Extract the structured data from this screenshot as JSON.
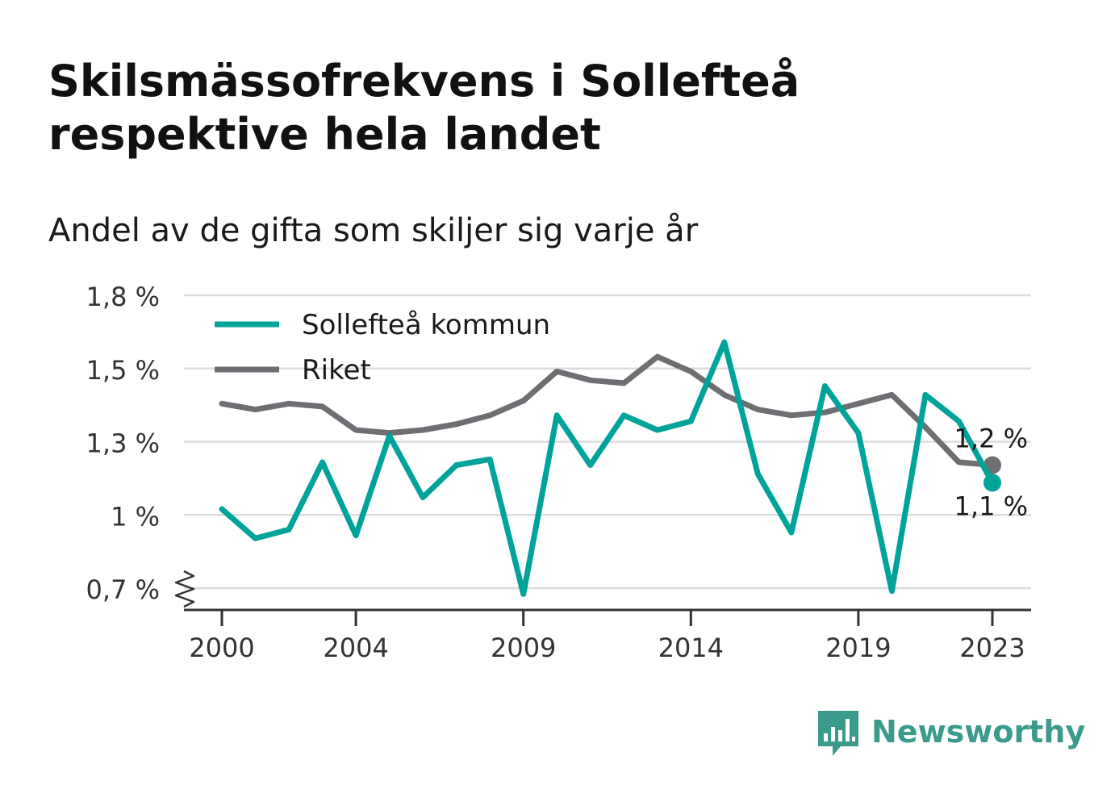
{
  "title": "Skilsmässofrekvens i Sollefteå respektive hela landet",
  "subtitle": "Andel av de gifta som skiljer sig varje år",
  "brand": {
    "name": "Newsworthy",
    "logo_icon": "bar-chart-speech-bubble-icon",
    "color": "#3a9a8c"
  },
  "chart_data": {
    "type": "line",
    "title": "Skilsmässofrekvens i Sollefteå respektive hela landet",
    "subtitle": "Andel av de gifta som skiljer sig varje år",
    "xlabel": "",
    "ylabel": "",
    "x": [
      2000,
      2001,
      2002,
      2003,
      2004,
      2005,
      2006,
      2007,
      2008,
      2009,
      2010,
      2011,
      2012,
      2013,
      2014,
      2015,
      2016,
      2017,
      2018,
      2019,
      2020,
      2021,
      2022,
      2023
    ],
    "x_ticks": [
      2000,
      2004,
      2009,
      2014,
      2019,
      2023
    ],
    "x_tick_labels": [
      "2000",
      "2004",
      "2009",
      "2014",
      "2019",
      "2023"
    ],
    "y_ticks": [
      0.75,
      1.0,
      1.25,
      1.5,
      1.75
    ],
    "y_tick_labels": [
      "0,7 %",
      "1 %",
      "1,3 %",
      "1,5 %",
      "1,8 %"
    ],
    "ylim": [
      0.68,
      1.75
    ],
    "axis_break": true,
    "grid": true,
    "legend_position": "top-left",
    "series": [
      {
        "name": "Sollefteå kommun",
        "color": "#00a39a",
        "values": [
          1.02,
          0.92,
          0.95,
          1.18,
          0.93,
          1.27,
          1.06,
          1.17,
          1.19,
          0.73,
          1.34,
          1.17,
          1.34,
          1.29,
          1.32,
          1.59,
          1.14,
          0.94,
          1.44,
          1.28,
          0.74,
          1.41,
          1.32,
          1.11
        ],
        "end_label": "1,1 %"
      },
      {
        "name": "Riket",
        "color": "#6e6e73",
        "values": [
          1.38,
          1.36,
          1.38,
          1.37,
          1.29,
          1.28,
          1.29,
          1.31,
          1.34,
          1.39,
          1.49,
          1.46,
          1.45,
          1.54,
          1.49,
          1.41,
          1.36,
          1.34,
          1.35,
          1.38,
          1.41,
          1.3,
          1.18,
          1.17
        ],
        "end_label": "1,2 %"
      }
    ]
  }
}
